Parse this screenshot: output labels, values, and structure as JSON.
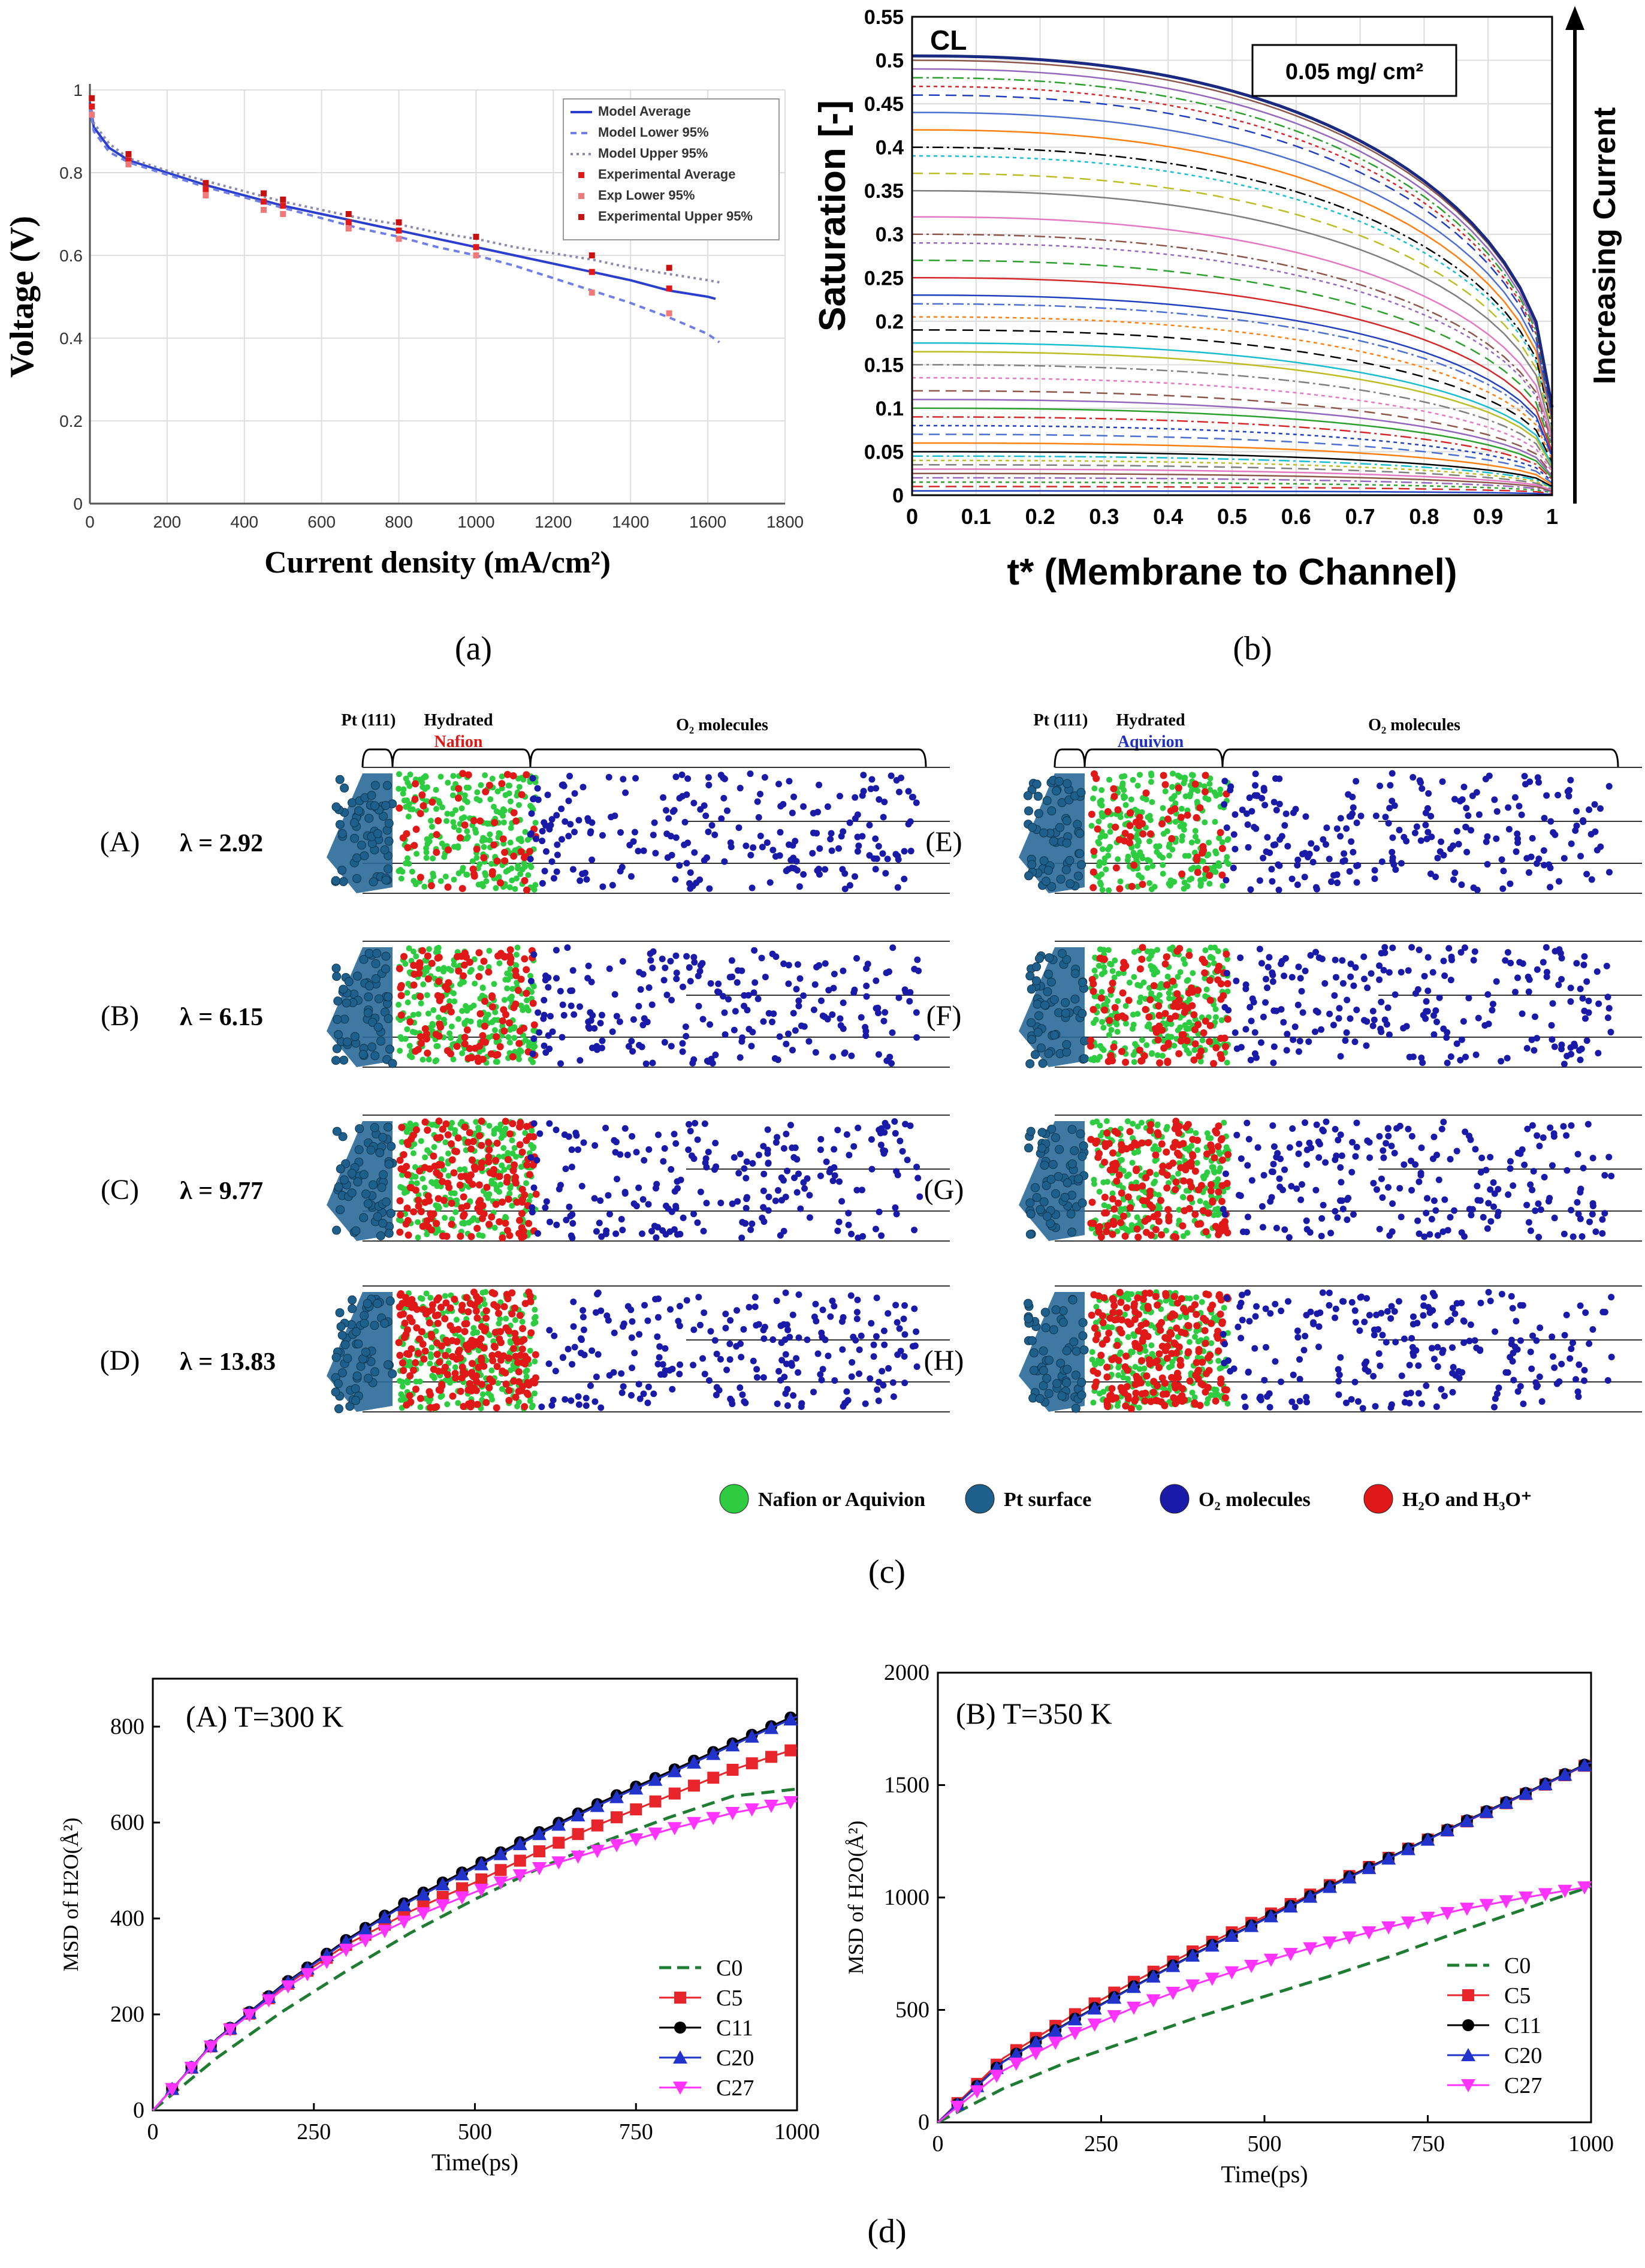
{
  "captions": {
    "a": "(a)",
    "b": "(b)",
    "c": "(c)",
    "d": "(d)"
  },
  "chart_data": [
    {
      "id": "a",
      "type": "line",
      "xlabel": "Current density (mA/cm²)",
      "ylabel": "Voltage (V)",
      "xlim": [
        0,
        1800
      ],
      "ylim": [
        0,
        1
      ],
      "xticks": [
        0,
        200,
        400,
        600,
        800,
        1000,
        1200,
        1400,
        1600,
        1800
      ],
      "yticks": [
        0,
        0.2,
        0.4,
        0.6,
        0.8,
        1
      ],
      "ytick_labels": [
        "0",
        "0.2",
        "0.4",
        "0.6",
        "0.8",
        "1"
      ],
      "grid": true,
      "legend_position": "top-right",
      "legend": [
        "Model Average",
        "Model Lower 95%",
        "Model Upper 95%",
        "Experimental Average",
        "Exp Lower 95%",
        "Experimental Upper 95%"
      ],
      "series": [
        {
          "name": "Model Average",
          "x": [
            0,
            10,
            50,
            100,
            200,
            300,
            400,
            500,
            600,
            700,
            800,
            900,
            1000,
            1100,
            1200,
            1300,
            1400,
            1500,
            1600,
            1620
          ],
          "y": [
            0.97,
            0.91,
            0.86,
            0.83,
            0.8,
            0.77,
            0.745,
            0.72,
            0.7,
            0.68,
            0.66,
            0.64,
            0.62,
            0.6,
            0.58,
            0.56,
            0.54,
            0.515,
            0.5,
            0.495
          ],
          "color": "#2b3fcf"
        },
        {
          "name": "Model Lower 95%",
          "x": [
            0,
            10,
            50,
            100,
            200,
            300,
            400,
            500,
            600,
            700,
            800,
            900,
            1000,
            1100,
            1200,
            1300,
            1400,
            1500,
            1600,
            1630
          ],
          "y": [
            0.96,
            0.9,
            0.85,
            0.825,
            0.795,
            0.765,
            0.74,
            0.715,
            0.69,
            0.665,
            0.645,
            0.62,
            0.6,
            0.575,
            0.545,
            0.515,
            0.485,
            0.45,
            0.41,
            0.39
          ],
          "color": "#6f7fe8"
        },
        {
          "name": "Model Upper 95%",
          "x": [
            0,
            10,
            50,
            100,
            200,
            300,
            400,
            500,
            600,
            700,
            800,
            900,
            1000,
            1100,
            1200,
            1300,
            1400,
            1500,
            1600,
            1630
          ],
          "y": [
            0.98,
            0.92,
            0.87,
            0.835,
            0.805,
            0.78,
            0.755,
            0.73,
            0.71,
            0.69,
            0.675,
            0.655,
            0.64,
            0.62,
            0.605,
            0.59,
            0.57,
            0.555,
            0.54,
            0.535
          ],
          "color": "#8a8ab0"
        },
        {
          "name": "Experimental Average",
          "x": [
            5,
            100,
            300,
            450,
            500,
            670,
            800,
            1000,
            1300,
            1500
          ],
          "y": [
            0.96,
            0.83,
            0.76,
            0.73,
            0.72,
            0.68,
            0.66,
            0.62,
            0.56,
            0.52
          ],
          "color": "#e01818"
        },
        {
          "name": "Exp Lower 95%",
          "x": [
            5,
            100,
            300,
            450,
            500,
            670,
            800,
            1000,
            1300,
            1500
          ],
          "y": [
            0.94,
            0.82,
            0.745,
            0.71,
            0.7,
            0.665,
            0.64,
            0.6,
            0.51,
            0.46
          ],
          "color": "#f07a7a"
        },
        {
          "name": "Experimental Upper 95%",
          "x": [
            5,
            100,
            300,
            450,
            500,
            670,
            800,
            1000,
            1300,
            1500
          ],
          "y": [
            0.98,
            0.845,
            0.775,
            0.75,
            0.735,
            0.7,
            0.68,
            0.645,
            0.6,
            0.57
          ],
          "color": "#c81010"
        }
      ]
    },
    {
      "id": "b",
      "type": "line",
      "xlabel": "t* (Membrane to Channel)",
      "ylabel": "Saturation [-]",
      "xlim": [
        0,
        1
      ],
      "ylim": [
        0,
        0.55
      ],
      "xticks": [
        0,
        0.1,
        0.2,
        0.3,
        0.4,
        0.5,
        0.6,
        0.7,
        0.8,
        0.9,
        1
      ],
      "yticks": [
        0,
        0.05,
        0.1,
        0.15,
        0.2,
        0.25,
        0.3,
        0.35,
        0.4,
        0.45,
        0.5,
        0.55
      ],
      "xtick_labels": [
        "0",
        "0.1",
        "0.2",
        "0.3",
        "0.4",
        "0.5",
        "0.6",
        "0.7",
        "0.8",
        "0.9",
        "1"
      ],
      "ytick_labels": [
        "0",
        "0.05",
        "0.1",
        "0.15",
        "0.2",
        "0.25",
        "0.3",
        "0.35",
        "0.4",
        "0.45",
        "0.5",
        "0.55"
      ],
      "annotations": {
        "corner": "CL",
        "loading": "0.05 mg/ cm²",
        "arrow": "Increasing Current"
      },
      "curve_start_values": [
        0.005,
        0.01,
        0.015,
        0.02,
        0.025,
        0.03,
        0.035,
        0.04,
        0.045,
        0.05,
        0.06,
        0.07,
        0.08,
        0.09,
        0.1,
        0.11,
        0.12,
        0.135,
        0.15,
        0.165,
        0.175,
        0.19,
        0.205,
        0.22,
        0.23,
        0.25,
        0.27,
        0.29,
        0.3,
        0.32,
        0.35,
        0.37,
        0.39,
        0.4,
        0.42,
        0.44,
        0.46,
        0.47,
        0.48,
        0.49,
        0.5,
        0.505
      ],
      "curve_end_value": 0.1
    },
    {
      "id": "d-A",
      "type": "line",
      "title": "(A) T=300 K",
      "xlabel": "Time(ps)",
      "ylabel": "MSD of H2O(Å²)",
      "xlim": [
        0,
        1000
      ],
      "ylim": [
        0,
        900
      ],
      "xticks": [
        0,
        250,
        500,
        750,
        1000
      ],
      "yticks": [
        0,
        200,
        400,
        600,
        800
      ],
      "legend_position": "bottom-right",
      "series": [
        {
          "name": "C0",
          "color": "#1e7d32",
          "marker": "dash",
          "x": [
            0,
            100,
            200,
            300,
            400,
            500,
            600,
            700,
            800,
            900,
            1000
          ],
          "y": [
            0,
            110,
            205,
            290,
            370,
            440,
            505,
            560,
            610,
            655,
            670
          ]
        },
        {
          "name": "C5",
          "color": "#e8252b",
          "marker": "square",
          "x": [
            0,
            100,
            200,
            300,
            400,
            500,
            600,
            700,
            800,
            900,
            1000
          ],
          "y": [
            0,
            148,
            255,
            345,
            415,
            475,
            540,
            600,
            655,
            710,
            755
          ]
        },
        {
          "name": "C11",
          "color": "#000000",
          "marker": "circle",
          "x": [
            0,
            100,
            200,
            300,
            400,
            500,
            600,
            700,
            800,
            900,
            1000
          ],
          "y": [
            0,
            150,
            260,
            355,
            440,
            510,
            580,
            645,
            705,
            765,
            825
          ]
        },
        {
          "name": "C20",
          "color": "#2233cc",
          "marker": "triangle-up",
          "x": [
            0,
            100,
            200,
            300,
            400,
            500,
            600,
            700,
            800,
            900,
            1000
          ],
          "y": [
            0,
            149,
            258,
            352,
            436,
            506,
            576,
            641,
            701,
            761,
            821
          ]
        },
        {
          "name": "C27",
          "color": "#ff33ff",
          "marker": "triangle-down",
          "x": [
            0,
            100,
            200,
            300,
            400,
            500,
            600,
            700,
            800,
            900,
            1000
          ],
          "y": [
            0,
            148,
            250,
            335,
            400,
            455,
            505,
            545,
            585,
            620,
            645
          ]
        }
      ]
    },
    {
      "id": "d-B",
      "type": "line",
      "title": "(B) T=350 K",
      "xlabel": "Time(ps)",
      "ylabel": "MSD of H2O(Å²)",
      "xlim": [
        0,
        1000
      ],
      "ylim": [
        0,
        2000
      ],
      "xticks": [
        0,
        250,
        500,
        750,
        1000
      ],
      "yticks": [
        0,
        500,
        1000,
        1500,
        2000
      ],
      "legend_position": "bottom-right",
      "series": [
        {
          "name": "C0",
          "color": "#1e7d32",
          "marker": "dash",
          "x": [
            0,
            100,
            200,
            300,
            400,
            500,
            600,
            700,
            800,
            900,
            1000
          ],
          "y": [
            0,
            150,
            270,
            370,
            470,
            560,
            650,
            745,
            850,
            950,
            1050
          ]
        },
        {
          "name": "C5",
          "color": "#e8252b",
          "marker": "square",
          "x": [
            0,
            100,
            200,
            300,
            400,
            500,
            600,
            700,
            800,
            900,
            1000
          ],
          "y": [
            0,
            285,
            465,
            625,
            775,
            915,
            1055,
            1190,
            1325,
            1460,
            1600
          ]
        },
        {
          "name": "C11",
          "color": "#000000",
          "marker": "circle",
          "x": [
            0,
            100,
            200,
            300,
            400,
            500,
            600,
            700,
            800,
            900,
            1000
          ],
          "y": [
            0,
            270,
            445,
            605,
            760,
            905,
            1050,
            1190,
            1330,
            1465,
            1605
          ]
        },
        {
          "name": "C20",
          "color": "#2233cc",
          "marker": "triangle-up",
          "x": [
            0,
            100,
            200,
            300,
            400,
            500,
            600,
            700,
            800,
            900,
            1000
          ],
          "y": [
            0,
            268,
            442,
            602,
            757,
            902,
            1047,
            1187,
            1327,
            1462,
            1602
          ]
        },
        {
          "name": "C27",
          "color": "#ff33ff",
          "marker": "triangle-down",
          "x": [
            0,
            100,
            200,
            300,
            400,
            500,
            600,
            700,
            800,
            900,
            1000
          ],
          "y": [
            0,
            230,
            385,
            510,
            620,
            715,
            800,
            875,
            945,
            1000,
            1050
          ]
        }
      ]
    }
  ],
  "panel_c": {
    "left_headers": {
      "pt": "Pt (111)",
      "hydrated": "Hydrated",
      "ionomer": "Nafion",
      "o2": "O₂ molecules"
    },
    "right_headers": {
      "pt": "Pt (111)",
      "hydrated": "Hydrated",
      "ionomer": "Aquivion",
      "o2": "O₂ molecules"
    },
    "left_rows": [
      {
        "label": "(A)",
        "lambda": "λ = 2.92"
      },
      {
        "label": "(B)",
        "lambda": "λ = 6.15"
      },
      {
        "label": "(C)",
        "lambda": "λ = 9.77"
      },
      {
        "label": "(D)",
        "lambda": "λ = 13.83"
      }
    ],
    "right_rows": [
      {
        "label": "(E)"
      },
      {
        "label": "(F)"
      },
      {
        "label": "(G)"
      },
      {
        "label": "(H)"
      }
    ],
    "left_ionomer_color": "#e01818",
    "right_ionomer_color": "#1f2fbf",
    "legend": [
      {
        "name": "Nafion or Aquivion",
        "color": "#2ecc40"
      },
      {
        "name": "Pt surface",
        "color": "#1f5f8b"
      },
      {
        "name": "O₂ molecules",
        "color": "#1a1aa8"
      },
      {
        "name": "H₂O and H₃O⁺",
        "color": "#e01818"
      }
    ]
  }
}
